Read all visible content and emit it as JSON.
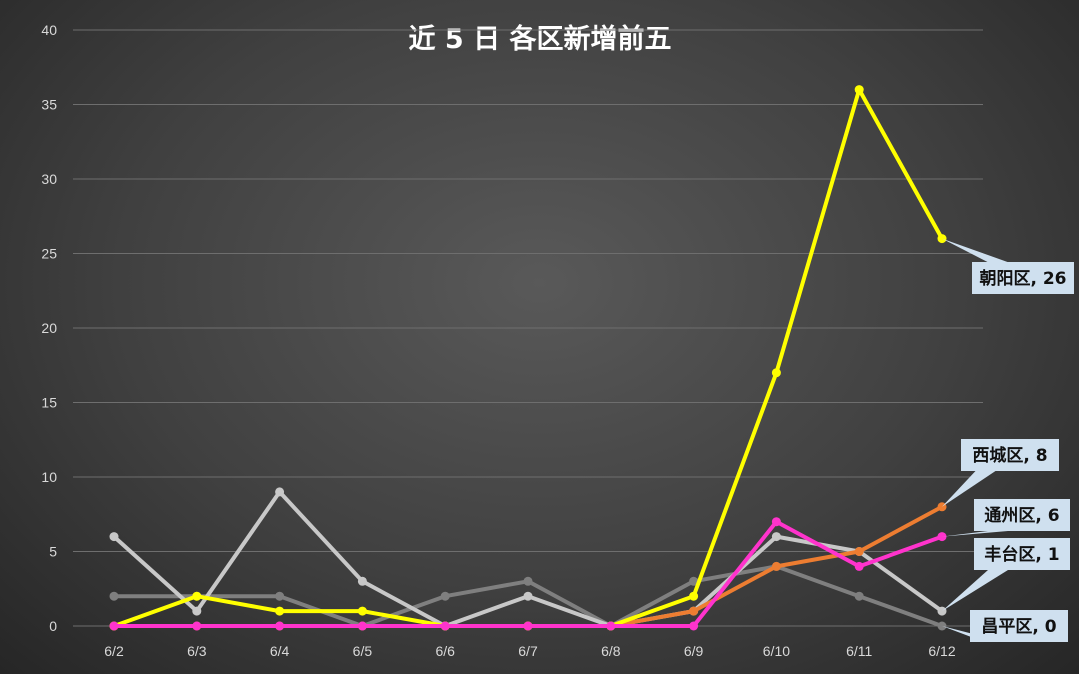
{
  "chart_data": {
    "type": "line",
    "title": "近 5 日 各区新增前五",
    "xlabel": "",
    "ylabel": "",
    "categories": [
      "6/2",
      "6/3",
      "6/4",
      "6/5",
      "6/6",
      "6/7",
      "6/8",
      "6/9",
      "6/10",
      "6/11",
      "6/12"
    ],
    "ylim": [
      0,
      40
    ],
    "yticks": [
      0,
      5,
      10,
      15,
      20,
      25,
      30,
      35,
      40
    ],
    "grid": true,
    "legend": "data-labels-at-line-ends",
    "series": [
      {
        "name": "昌平区",
        "color": "#7f7f7f",
        "values": [
          2,
          2,
          2,
          0,
          2,
          3,
          0,
          3,
          4,
          2,
          0
        ],
        "end_label": "昌平区, 0"
      },
      {
        "name": "丰台区",
        "color": "#c8c8c8",
        "values": [
          6,
          1,
          9,
          3,
          0,
          2,
          0,
          1,
          6,
          5,
          1
        ],
        "end_label": "丰台区, 1"
      },
      {
        "name": "西城区",
        "color": "#ed7d31",
        "values": [
          0,
          0,
          0,
          0,
          0,
          0,
          0,
          1,
          4,
          5,
          8
        ],
        "end_label": "西城区, 8"
      },
      {
        "name": "朝阳区",
        "color": "#ffff00",
        "values": [
          0,
          2,
          1,
          1,
          0,
          0,
          0,
          2,
          17,
          36,
          26
        ],
        "end_label": "朝阳区, 26"
      },
      {
        "name": "通州区",
        "color": "#ff33cc",
        "values": [
          0,
          0,
          0,
          0,
          0,
          0,
          0,
          0,
          7,
          4,
          6
        ],
        "end_label": "通州区, 6"
      }
    ]
  }
}
